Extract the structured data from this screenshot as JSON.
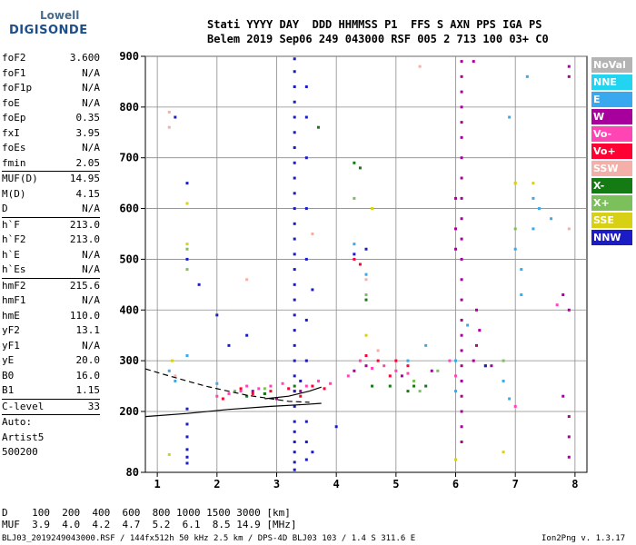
{
  "logo": {
    "line1": "Lowell",
    "line2": "DIGISONDE"
  },
  "header": {
    "line1": "Stati YYYY DAY  DDD HHMMSS P1  FFS S AXN PPS IGA PS",
    "line2": "Belem 2019 Sep06 249 043000 RSF 005 2 713 100 03+ C0"
  },
  "scaled_params": [
    {
      "name": "foF2",
      "value": "3.600"
    },
    {
      "name": "foF1",
      "value": "N/A"
    },
    {
      "name": "foF1p",
      "value": "N/A"
    },
    {
      "name": "foE",
      "value": "N/A"
    },
    {
      "name": "foEp",
      "value": "0.35"
    },
    {
      "name": "fxI",
      "value": "3.95"
    },
    {
      "name": "foEs",
      "value": "N/A"
    },
    {
      "name": "fmin",
      "value": "2.05"
    },
    {
      "name": "MUF(D)",
      "value": "14.95",
      "sep": true
    },
    {
      "name": "M(D)",
      "value": "4.15"
    },
    {
      "name": "D",
      "value": "N/A"
    },
    {
      "name": "h`F",
      "value": "213.0",
      "sep": true
    },
    {
      "name": "h`F2",
      "value": "213.0"
    },
    {
      "name": "h`E",
      "value": "N/A"
    },
    {
      "name": "h`Es",
      "value": "N/A"
    },
    {
      "name": "hmF2",
      "value": "215.6",
      "sep": true
    },
    {
      "name": "hmF1",
      "value": "N/A"
    },
    {
      "name": "hmE",
      "value": "110.0"
    },
    {
      "name": "yF2",
      "value": "13.1"
    },
    {
      "name": "yF1",
      "value": "N/A"
    },
    {
      "name": "yE",
      "value": "20.0"
    },
    {
      "name": "B0",
      "value": "16.0"
    },
    {
      "name": "B1",
      "value": "1.15"
    },
    {
      "name": "C-level",
      "value": "33",
      "sep": true
    },
    {
      "name": "Auto:",
      "value": "",
      "sep": true
    },
    {
      "name": "Artist5",
      "value": ""
    },
    {
      "name": "500200",
      "value": ""
    }
  ],
  "legend": [
    {
      "label": "NoVal",
      "color": "#b4b4b4"
    },
    {
      "label": "NNE",
      "color": "#22d4f0"
    },
    {
      "label": "E",
      "color": "#3aa8ee"
    },
    {
      "label": "W",
      "color": "#a8009c"
    },
    {
      "label": "Vo-",
      "color": "#ff44b4"
    },
    {
      "label": "Vo+",
      "color": "#ff0033"
    },
    {
      "label": "SSW",
      "color": "#f4b0a8"
    },
    {
      "label": "X-",
      "color": "#147a14"
    },
    {
      "label": "X+",
      "color": "#7cc05c"
    },
    {
      "label": "SSE",
      "color": "#d8d014"
    },
    {
      "label": "NNW",
      "color": "#1c1cc4"
    }
  ],
  "footer": {
    "line1": "D    100  200  400  600  800 1000 1500 3000 [km]",
    "line2": "MUF  3.9  4.0  4.2  4.7  5.2  6.1  8.5 14.9 [MHz]",
    "note": "BLJ03_2019249043000.RSF / 144fx512h 50 kHz 2.5 km / DPS-4D BLJ03 103 / 1.4 S 311.6 E",
    "version": "Ion2Png v. 1.3.17"
  },
  "chart_data": {
    "type": "scatter",
    "title": "",
    "xlabel": "",
    "ylabel": "",
    "xlim": [
      0.8,
      8.2
    ],
    "ylim": [
      80,
      900
    ],
    "xticks": [
      1,
      2,
      3,
      4,
      5,
      6,
      7,
      8
    ],
    "yticks": [
      80,
      200,
      300,
      400,
      500,
      600,
      700,
      800,
      900
    ],
    "grid": true,
    "legend_position": "right",
    "series": [
      {
        "color_key": "E",
        "points": [
          [
            1.2,
            280
          ],
          [
            1.3,
            260
          ],
          [
            1.5,
            310
          ],
          [
            2.0,
            255
          ],
          [
            2.3,
            240
          ],
          [
            4.3,
            530
          ],
          [
            4.5,
            470
          ],
          [
            5.2,
            300
          ],
          [
            5.5,
            330
          ],
          [
            6.0,
            240
          ],
          [
            6.0,
            300
          ],
          [
            6.2,
            370
          ],
          [
            6.8,
            260
          ],
          [
            6.9,
            225
          ],
          [
            6.9,
            780
          ],
          [
            7.0,
            520
          ],
          [
            7.1,
            430
          ],
          [
            7.1,
            480
          ],
          [
            7.2,
            860
          ],
          [
            7.3,
            620
          ],
          [
            7.3,
            560
          ],
          [
            7.4,
            600
          ],
          [
            7.6,
            580
          ]
        ]
      },
      {
        "color_key": "W",
        "points": [
          [
            2.6,
            240
          ],
          [
            2.8,
            235
          ],
          [
            3.0,
            225
          ],
          [
            3.4,
            240
          ],
          [
            4.3,
            280
          ],
          [
            4.5,
            290
          ],
          [
            5.1,
            270
          ],
          [
            5.6,
            280
          ],
          [
            6.1,
            890
          ],
          [
            6.1,
            860
          ],
          [
            6.1,
            830
          ],
          [
            6.1,
            800
          ],
          [
            6.1,
            770
          ],
          [
            6.1,
            740
          ],
          [
            6.1,
            700
          ],
          [
            6.1,
            660
          ],
          [
            6.1,
            620
          ],
          [
            6.1,
            580
          ],
          [
            6.1,
            540
          ],
          [
            6.1,
            500
          ],
          [
            6.1,
            460
          ],
          [
            6.1,
            420
          ],
          [
            6.1,
            380
          ],
          [
            6.1,
            350
          ],
          [
            6.1,
            320
          ],
          [
            6.1,
            290
          ],
          [
            6.1,
            260
          ],
          [
            6.1,
            230
          ],
          [
            6.1,
            200
          ],
          [
            6.1,
            170
          ],
          [
            6.1,
            140
          ],
          [
            6.0,
            620
          ],
          [
            6.0,
            560
          ],
          [
            6.0,
            520
          ],
          [
            6.3,
            890
          ],
          [
            6.3,
            300
          ],
          [
            6.35,
            330
          ],
          [
            6.4,
            360
          ],
          [
            6.35,
            400
          ],
          [
            6.5,
            290
          ],
          [
            6.6,
            290
          ],
          [
            7.8,
            430
          ],
          [
            7.9,
            400
          ],
          [
            7.8,
            230
          ],
          [
            7.9,
            190
          ],
          [
            7.9,
            150
          ],
          [
            7.9,
            110
          ],
          [
            7.9,
            860
          ],
          [
            7.9,
            880
          ]
        ]
      },
      {
        "color_key": "Vo-",
        "points": [
          [
            2.0,
            230
          ],
          [
            2.2,
            235
          ],
          [
            2.4,
            240
          ],
          [
            2.5,
            250
          ],
          [
            2.7,
            245
          ],
          [
            2.9,
            250
          ],
          [
            3.1,
            255
          ],
          [
            3.3,
            240
          ],
          [
            3.5,
            250
          ],
          [
            3.7,
            260
          ],
          [
            3.9,
            255
          ],
          [
            4.2,
            270
          ],
          [
            4.4,
            300
          ],
          [
            4.6,
            285
          ],
          [
            4.8,
            290
          ],
          [
            5.0,
            280
          ],
          [
            5.2,
            275
          ],
          [
            5.9,
            300
          ],
          [
            6.0,
            270
          ],
          [
            7.0,
            210
          ],
          [
            7.7,
            410
          ]
        ]
      },
      {
        "color_key": "Vo+",
        "points": [
          [
            2.1,
            225
          ],
          [
            2.4,
            245
          ],
          [
            2.6,
            235
          ],
          [
            2.9,
            240
          ],
          [
            3.2,
            245
          ],
          [
            3.4,
            230
          ],
          [
            3.6,
            250
          ],
          [
            3.8,
            245
          ],
          [
            4.3,
            500
          ],
          [
            4.4,
            490
          ],
          [
            4.5,
            310
          ],
          [
            4.7,
            300
          ],
          [
            4.9,
            270
          ],
          [
            5.0,
            300
          ],
          [
            5.2,
            290
          ]
        ]
      },
      {
        "color_key": "SSW",
        "points": [
          [
            1.2,
            790
          ],
          [
            1.2,
            760
          ],
          [
            1.3,
            270
          ],
          [
            2.5,
            460
          ],
          [
            3.6,
            550
          ],
          [
            4.5,
            460
          ],
          [
            4.7,
            320
          ],
          [
            5.4,
            880
          ],
          [
            7.9,
            560
          ],
          [
            7.0,
            650
          ]
        ]
      },
      {
        "color_key": "X-",
        "points": [
          [
            2.5,
            230
          ],
          [
            2.8,
            235
          ],
          [
            3.3,
            250
          ],
          [
            3.7,
            760
          ],
          [
            4.3,
            690
          ],
          [
            4.4,
            680
          ],
          [
            4.5,
            420
          ],
          [
            4.6,
            250
          ],
          [
            4.9,
            250
          ],
          [
            5.2,
            240
          ],
          [
            5.3,
            250
          ],
          [
            5.5,
            250
          ]
        ]
      },
      {
        "color_key": "X+",
        "points": [
          [
            1.5,
            520
          ],
          [
            1.5,
            480
          ],
          [
            2.3,
            240
          ],
          [
            2.8,
            245
          ],
          [
            4.3,
            620
          ],
          [
            4.5,
            430
          ],
          [
            5.3,
            260
          ],
          [
            5.4,
            240
          ],
          [
            5.7,
            280
          ],
          [
            6.8,
            300
          ],
          [
            7.0,
            560
          ]
        ]
      },
      {
        "color_key": "SSE",
        "points": [
          [
            1.2,
            115
          ],
          [
            1.5,
            530
          ],
          [
            1.5,
            610
          ],
          [
            3.5,
            300
          ],
          [
            4.6,
            600
          ],
          [
            4.5,
            350
          ],
          [
            7.0,
            650
          ],
          [
            7.3,
            650
          ],
          [
            6.8,
            120
          ],
          [
            6.0,
            105
          ],
          [
            1.25,
            300
          ]
        ]
      },
      {
        "color_key": "NNW",
        "points": [
          [
            1.3,
            780
          ],
          [
            1.5,
            205
          ],
          [
            1.5,
            175
          ],
          [
            1.5,
            150
          ],
          [
            1.5,
            125
          ],
          [
            1.5,
            110
          ],
          [
            1.5,
            98
          ],
          [
            1.5,
            650
          ],
          [
            1.5,
            500
          ],
          [
            1.7,
            450
          ],
          [
            2.0,
            390
          ],
          [
            2.2,
            330
          ],
          [
            2.5,
            350
          ],
          [
            3.3,
            895
          ],
          [
            3.3,
            870
          ],
          [
            3.3,
            840
          ],
          [
            3.3,
            810
          ],
          [
            3.3,
            780
          ],
          [
            3.3,
            750
          ],
          [
            3.3,
            720
          ],
          [
            3.3,
            690
          ],
          [
            3.3,
            660
          ],
          [
            3.3,
            630
          ],
          [
            3.3,
            600
          ],
          [
            3.3,
            570
          ],
          [
            3.3,
            540
          ],
          [
            3.3,
            510
          ],
          [
            3.3,
            480
          ],
          [
            3.3,
            450
          ],
          [
            3.3,
            420
          ],
          [
            3.3,
            390
          ],
          [
            3.3,
            360
          ],
          [
            3.3,
            330
          ],
          [
            3.3,
            300
          ],
          [
            3.3,
            270
          ],
          [
            3.3,
            240
          ],
          [
            3.3,
            210
          ],
          [
            3.3,
            180
          ],
          [
            3.3,
            160
          ],
          [
            3.3,
            140
          ],
          [
            3.3,
            120
          ],
          [
            3.3,
            100
          ],
          [
            3.3,
            85
          ],
          [
            3.5,
            840
          ],
          [
            3.5,
            780
          ],
          [
            3.5,
            700
          ],
          [
            3.5,
            600
          ],
          [
            3.5,
            500
          ],
          [
            3.5,
            380
          ],
          [
            3.5,
            300
          ],
          [
            3.5,
            180
          ],
          [
            3.5,
            140
          ],
          [
            3.5,
            105
          ],
          [
            3.6,
            120
          ],
          [
            3.4,
            260
          ],
          [
            4.0,
            170
          ],
          [
            4.3,
            510
          ],
          [
            4.5,
            520
          ],
          [
            3.6,
            440
          ],
          [
            6.5,
            290
          ]
        ]
      }
    ],
    "traces": [
      {
        "style": "dashed",
        "points": [
          [
            0.8,
            284
          ],
          [
            1.2,
            270
          ],
          [
            1.8,
            250
          ],
          [
            2.5,
            232
          ],
          [
            3.2,
            220
          ],
          [
            3.55,
            218
          ]
        ]
      },
      {
        "style": "solid",
        "points": [
          [
            0.8,
            190
          ],
          [
            1.5,
            196
          ],
          [
            2.2,
            204
          ],
          [
            2.9,
            210
          ],
          [
            3.5,
            214
          ],
          [
            3.75,
            216
          ]
        ]
      },
      {
        "style": "solid",
        "points": [
          [
            2.8,
            225
          ],
          [
            3.2,
            230
          ],
          [
            3.55,
            240
          ],
          [
            3.75,
            248
          ]
        ]
      }
    ]
  }
}
